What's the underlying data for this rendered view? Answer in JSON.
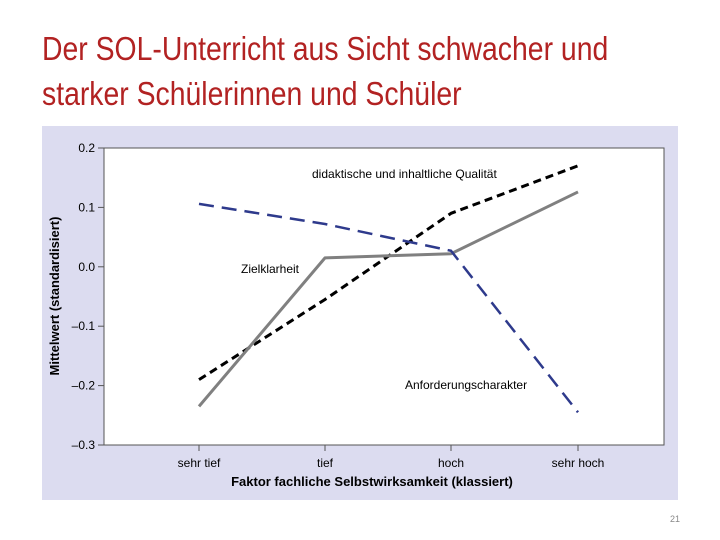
{
  "slide": {
    "title_line1": "Der SOL-Unterricht aus Sicht schwacher und",
    "title_line2": "starker Schülerinnen und Schüler",
    "page_number": "21",
    "title_color": "#b22222",
    "panel_color": "#dcdcf0"
  },
  "chart_data": {
    "type": "line",
    "xlabel": "Faktor fachliche Selbstwirksamkeit (klassiert)",
    "ylabel": "Mittelwert (standardisiert)",
    "categories": [
      "sehr tief",
      "tief",
      "hoch",
      "sehr hoch"
    ],
    "ylim": [
      -0.3,
      0.2
    ],
    "yticks": [
      0.2,
      0.1,
      0.0,
      -0.1,
      -0.2,
      -0.3
    ],
    "ytick_labels": [
      "0.2",
      "0.1",
      "0.0",
      "–0.1",
      "–0.2",
      "–0.3"
    ],
    "grid": false,
    "series": [
      {
        "name": "didaktische und inhaltliche Qualität",
        "values": [
          -0.19,
          -0.055,
          0.09,
          0.17
        ],
        "color": "#000000",
        "style": "dashed"
      },
      {
        "name": "Zielklarheit",
        "values": [
          -0.235,
          0.015,
          0.022,
          0.126
        ],
        "color": "#808080",
        "style": "solid"
      },
      {
        "name": "Anforderungscharakter",
        "values": [
          0.106,
          0.072,
          0.027,
          -0.245
        ],
        "color": "#2e3a8c",
        "style": "dashed"
      }
    ]
  }
}
